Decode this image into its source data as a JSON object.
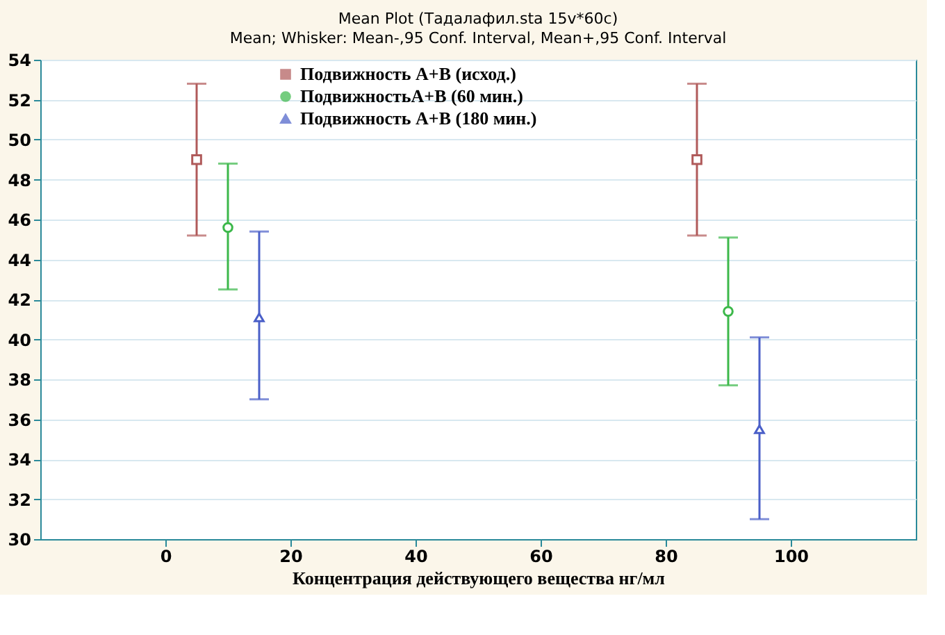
{
  "chart_data": {
    "type": "scatter",
    "title": "Mean Plot (Тадалафил.sta 15v*60c)",
    "subtitle": "Mean;  Whisker: Mean-,95 Conf. Interval, Mean+,95 Conf. Interval",
    "xlabel": "Концентрация действующего вещества нг/мл",
    "xlim": [
      -20,
      120
    ],
    "xticks": [
      0,
      20,
      40,
      60,
      80,
      100
    ],
    "ylim": [
      30,
      54
    ],
    "yticks": [
      30,
      32,
      34,
      36,
      38,
      40,
      42,
      44,
      46,
      48,
      50,
      52,
      54
    ],
    "grid": "y",
    "legend": "top",
    "series": [
      {
        "name": "Подвижность А+В (исход.)",
        "color": "#b05a5a",
        "marker": "square",
        "x": [
          5,
          85
        ],
        "values": [
          49.0,
          49.0
        ],
        "errors": [
          [
            45.2,
            52.8
          ],
          [
            45.2,
            52.8
          ]
        ]
      },
      {
        "name": "ПодвижностьА+В (60 мин.)",
        "color": "#3cb84a",
        "marker": "circle",
        "x": [
          10,
          90
        ],
        "values": [
          45.6,
          41.4
        ],
        "errors": [
          [
            42.5,
            48.8
          ],
          [
            37.7,
            45.1
          ]
        ]
      },
      {
        "name": "Подвижность А+В (180 мин.)",
        "color": "#4a5fc8",
        "marker": "triangle",
        "x": [
          15,
          95
        ],
        "values": [
          41.1,
          35.5
        ],
        "errors": [
          [
            37.0,
            45.4
          ],
          [
            31.0,
            40.1
          ]
        ]
      }
    ]
  }
}
